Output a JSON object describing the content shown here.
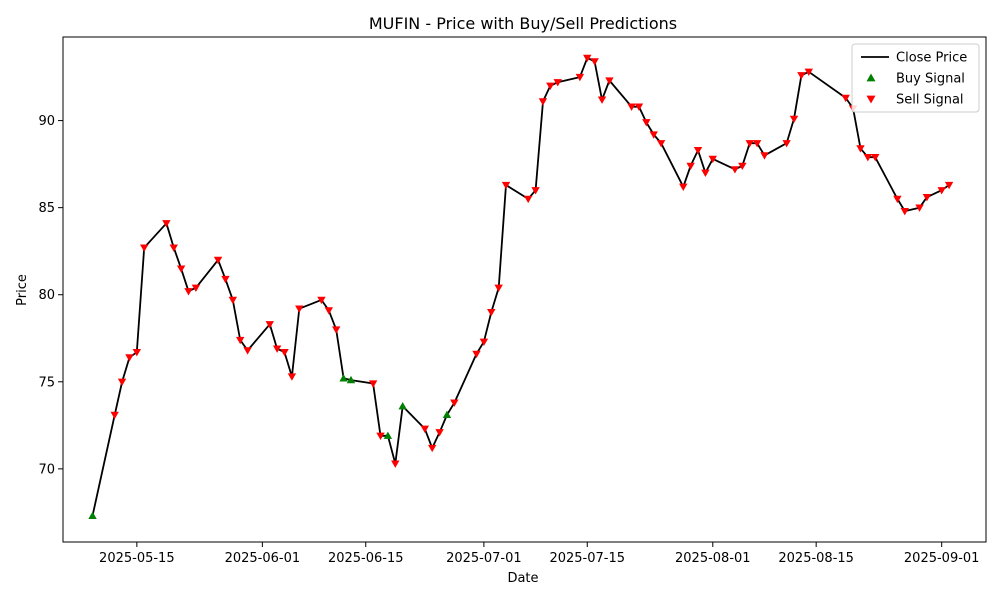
{
  "chart_data": {
    "type": "line",
    "title": "MUFIN - Price with Buy/Sell Predictions",
    "xlabel": "Date",
    "ylabel": "Price",
    "x_ticks": [
      "2025-05-15",
      "2025-06-01",
      "2025-06-15",
      "2025-07-01",
      "2025-07-15",
      "2025-08-01",
      "2025-08-15",
      "2025-09-01"
    ],
    "y_ticks": [
      70,
      75,
      80,
      85,
      90
    ],
    "xlim": [
      "2025-05-05",
      "2025-09-07"
    ],
    "ylim": [
      65.8,
      94.8
    ],
    "legend_position": "top-right",
    "grid": false,
    "series": [
      {
        "name": "Close Price",
        "type": "line",
        "color": "#000000",
        "points": [
          [
            "2025-05-09",
            67.3
          ],
          [
            "2025-05-12",
            73.1
          ],
          [
            "2025-05-13",
            75.0
          ],
          [
            "2025-05-14",
            76.4
          ],
          [
            "2025-05-15",
            76.7
          ],
          [
            "2025-05-16",
            82.7
          ],
          [
            "2025-05-19",
            84.1
          ],
          [
            "2025-05-20",
            82.7
          ],
          [
            "2025-05-21",
            81.5
          ],
          [
            "2025-05-22",
            80.2
          ],
          [
            "2025-05-23",
            80.4
          ],
          [
            "2025-05-26",
            82.0
          ],
          [
            "2025-05-27",
            80.9
          ],
          [
            "2025-05-28",
            79.7
          ],
          [
            "2025-05-29",
            77.4
          ],
          [
            "2025-05-30",
            76.8
          ],
          [
            "2025-06-02",
            78.3
          ],
          [
            "2025-06-03",
            76.9
          ],
          [
            "2025-06-04",
            76.7
          ],
          [
            "2025-06-05",
            75.3
          ],
          [
            "2025-06-06",
            79.2
          ],
          [
            "2025-06-09",
            79.7
          ],
          [
            "2025-06-10",
            79.1
          ],
          [
            "2025-06-11",
            78.0
          ],
          [
            "2025-06-12",
            75.2
          ],
          [
            "2025-06-13",
            75.1
          ],
          [
            "2025-06-16",
            74.9
          ],
          [
            "2025-06-17",
            71.9
          ],
          [
            "2025-06-18",
            71.9
          ],
          [
            "2025-06-19",
            70.3
          ],
          [
            "2025-06-20",
            73.6
          ],
          [
            "2025-06-23",
            72.3
          ],
          [
            "2025-06-24",
            71.2
          ],
          [
            "2025-06-25",
            72.1
          ],
          [
            "2025-06-26",
            73.1
          ],
          [
            "2025-06-27",
            73.8
          ],
          [
            "2025-06-30",
            76.6
          ],
          [
            "2025-07-01",
            77.3
          ],
          [
            "2025-07-02",
            79.0
          ],
          [
            "2025-07-03",
            80.4
          ],
          [
            "2025-07-04",
            86.3
          ],
          [
            "2025-07-07",
            85.5
          ],
          [
            "2025-07-08",
            86.0
          ],
          [
            "2025-07-09",
            91.1
          ],
          [
            "2025-07-10",
            92.0
          ],
          [
            "2025-07-11",
            92.2
          ],
          [
            "2025-07-14",
            92.5
          ],
          [
            "2025-07-15",
            93.6
          ],
          [
            "2025-07-16",
            93.4
          ],
          [
            "2025-07-17",
            91.2
          ],
          [
            "2025-07-18",
            92.3
          ],
          [
            "2025-07-21",
            90.8
          ],
          [
            "2025-07-22",
            90.8
          ],
          [
            "2025-07-23",
            89.9
          ],
          [
            "2025-07-24",
            89.2
          ],
          [
            "2025-07-25",
            88.7
          ],
          [
            "2025-07-28",
            86.2
          ],
          [
            "2025-07-29",
            87.4
          ],
          [
            "2025-07-30",
            88.3
          ],
          [
            "2025-07-31",
            87.0
          ],
          [
            "2025-08-01",
            87.8
          ],
          [
            "2025-08-04",
            87.2
          ],
          [
            "2025-08-05",
            87.4
          ],
          [
            "2025-08-06",
            88.7
          ],
          [
            "2025-08-07",
            88.7
          ],
          [
            "2025-08-08",
            88.0
          ],
          [
            "2025-08-11",
            88.7
          ],
          [
            "2025-08-12",
            90.1
          ],
          [
            "2025-08-13",
            92.6
          ],
          [
            "2025-08-14",
            92.8
          ],
          [
            "2025-08-19",
            91.3
          ],
          [
            "2025-08-20",
            90.7
          ],
          [
            "2025-08-21",
            88.4
          ],
          [
            "2025-08-22",
            87.9
          ],
          [
            "2025-08-23",
            87.9
          ],
          [
            "2025-08-26",
            85.5
          ],
          [
            "2025-08-27",
            84.8
          ],
          [
            "2025-08-29",
            85.0
          ],
          [
            "2025-08-30",
            85.6
          ],
          [
            "2025-09-01",
            86.0
          ],
          [
            "2025-09-02",
            86.3
          ]
        ]
      },
      {
        "name": "Buy Signal",
        "type": "scatter",
        "marker": "triangle-up",
        "color": "#008000",
        "points": [
          [
            "2025-05-09",
            67.3
          ],
          [
            "2025-06-12",
            75.2
          ],
          [
            "2025-06-13",
            75.1
          ],
          [
            "2025-06-18",
            71.9
          ],
          [
            "2025-06-20",
            73.6
          ],
          [
            "2025-06-26",
            73.1
          ]
        ]
      },
      {
        "name": "Sell Signal",
        "type": "scatter",
        "marker": "triangle-down",
        "color": "#ff0000",
        "points": [
          [
            "2025-05-12",
            73.1
          ],
          [
            "2025-05-13",
            75.0
          ],
          [
            "2025-05-14",
            76.4
          ],
          [
            "2025-05-15",
            76.7
          ],
          [
            "2025-05-16",
            82.7
          ],
          [
            "2025-05-19",
            84.1
          ],
          [
            "2025-05-20",
            82.7
          ],
          [
            "2025-05-21",
            81.5
          ],
          [
            "2025-05-22",
            80.2
          ],
          [
            "2025-05-23",
            80.4
          ],
          [
            "2025-05-26",
            82.0
          ],
          [
            "2025-05-27",
            80.9
          ],
          [
            "2025-05-28",
            79.7
          ],
          [
            "2025-05-29",
            77.4
          ],
          [
            "2025-05-30",
            76.8
          ],
          [
            "2025-06-02",
            78.3
          ],
          [
            "2025-06-03",
            76.9
          ],
          [
            "2025-06-04",
            76.7
          ],
          [
            "2025-06-05",
            75.3
          ],
          [
            "2025-06-06",
            79.2
          ],
          [
            "2025-06-09",
            79.7
          ],
          [
            "2025-06-10",
            79.1
          ],
          [
            "2025-06-11",
            78.0
          ],
          [
            "2025-06-16",
            74.9
          ],
          [
            "2025-06-17",
            71.9
          ],
          [
            "2025-06-19",
            70.3
          ],
          [
            "2025-06-23",
            72.3
          ],
          [
            "2025-06-24",
            71.2
          ],
          [
            "2025-06-25",
            72.1
          ],
          [
            "2025-06-27",
            73.8
          ],
          [
            "2025-06-30",
            76.6
          ],
          [
            "2025-07-01",
            77.3
          ],
          [
            "2025-07-02",
            79.0
          ],
          [
            "2025-07-03",
            80.4
          ],
          [
            "2025-07-04",
            86.3
          ],
          [
            "2025-07-07",
            85.5
          ],
          [
            "2025-07-08",
            86.0
          ],
          [
            "2025-07-09",
            91.1
          ],
          [
            "2025-07-10",
            92.0
          ],
          [
            "2025-07-11",
            92.2
          ],
          [
            "2025-07-14",
            92.5
          ],
          [
            "2025-07-15",
            93.6
          ],
          [
            "2025-07-16",
            93.4
          ],
          [
            "2025-07-17",
            91.2
          ],
          [
            "2025-07-18",
            92.3
          ],
          [
            "2025-07-21",
            90.8
          ],
          [
            "2025-07-22",
            90.8
          ],
          [
            "2025-07-23",
            89.9
          ],
          [
            "2025-07-24",
            89.2
          ],
          [
            "2025-07-25",
            88.7
          ],
          [
            "2025-07-28",
            86.2
          ],
          [
            "2025-07-29",
            87.4
          ],
          [
            "2025-07-30",
            88.3
          ],
          [
            "2025-07-31",
            87.0
          ],
          [
            "2025-08-01",
            87.8
          ],
          [
            "2025-08-04",
            87.2
          ],
          [
            "2025-08-05",
            87.4
          ],
          [
            "2025-08-06",
            88.7
          ],
          [
            "2025-08-07",
            88.7
          ],
          [
            "2025-08-08",
            88.0
          ],
          [
            "2025-08-11",
            88.7
          ],
          [
            "2025-08-12",
            90.1
          ],
          [
            "2025-08-13",
            92.6
          ],
          [
            "2025-08-14",
            92.8
          ],
          [
            "2025-08-19",
            91.3
          ],
          [
            "2025-08-20",
            90.7
          ],
          [
            "2025-08-21",
            88.4
          ],
          [
            "2025-08-22",
            87.9
          ],
          [
            "2025-08-23",
            87.9
          ],
          [
            "2025-08-26",
            85.5
          ],
          [
            "2025-08-27",
            84.8
          ],
          [
            "2025-08-29",
            85.0
          ],
          [
            "2025-08-30",
            85.6
          ],
          [
            "2025-09-01",
            86.0
          ],
          [
            "2025-09-02",
            86.3
          ]
        ]
      }
    ]
  }
}
